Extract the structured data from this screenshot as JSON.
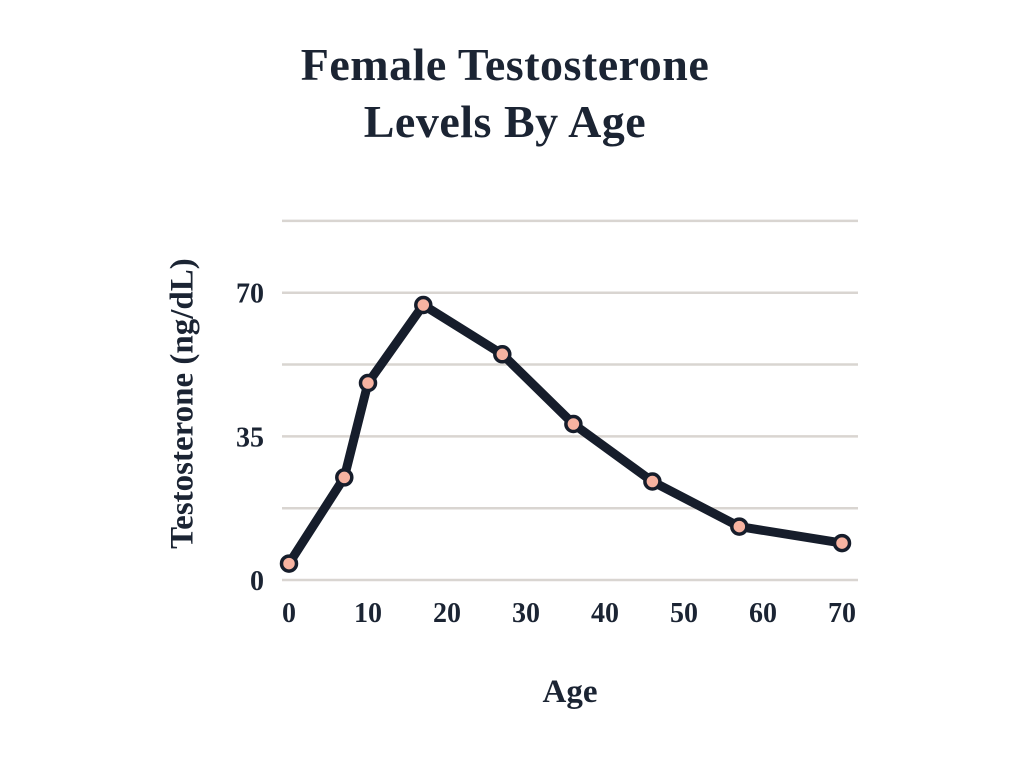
{
  "chart": {
    "title_line1": "Female Testosterone",
    "title_line2": "Levels By Age",
    "x_axis_title": "Age",
    "y_axis_title": "Testosterone (ng/dL)"
  },
  "chart_data": {
    "type": "line",
    "title": "Female Testosterone Levels By Age",
    "xlabel": "Age",
    "ylabel": "Testosterone (ng/dL)",
    "x": [
      0,
      7,
      10,
      17,
      27,
      36,
      46,
      57,
      70
    ],
    "values": [
      4,
      25,
      48,
      67,
      55,
      38,
      24,
      13,
      9
    ],
    "x_ticks": [
      0,
      10,
      20,
      30,
      40,
      50,
      60,
      70
    ],
    "y_ticks": [
      0,
      35,
      70
    ],
    "xlim": [
      0,
      70
    ],
    "ylim": [
      0,
      87.5
    ],
    "gridline_step": 17.5,
    "grid": "horizontal-only",
    "legend": "none",
    "marker": "circle",
    "colors": {
      "line": "#161d2b",
      "point_fill": "#f7b3a1",
      "point_stroke": "#161d2b",
      "gridline": "#d9d5d1",
      "text": "#1b2433",
      "background": "#ffffff"
    }
  }
}
